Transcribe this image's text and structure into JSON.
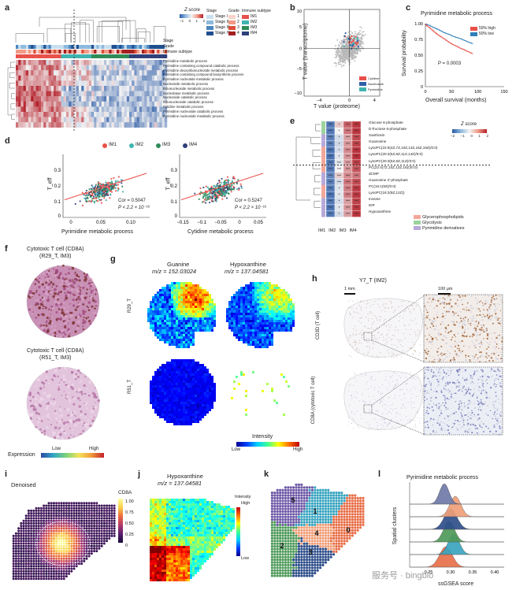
{
  "panel_labels": {
    "a": "a",
    "b": "b",
    "c": "c",
    "d": "d",
    "e": "e",
    "f": "f",
    "g": "g",
    "h": "h",
    "i": "i",
    "j": "j",
    "k": "k",
    "l": "l"
  },
  "panel_a": {
    "zscore_title": "Z score",
    "zscore_ticks": [
      "−1",
      "0",
      "1",
      "2"
    ],
    "annotation_labels": [
      "Stage",
      "Grade",
      "Immune subtype"
    ],
    "stage_title": "Stage",
    "stage_items": [
      {
        "label": "Stage I",
        "color": "#c9dff0"
      },
      {
        "label": "Stage II",
        "color": "#8db9dc"
      },
      {
        "label": "Stage III",
        "color": "#4a86c0"
      },
      {
        "label": "Stage IV",
        "color": "#1f4f8f"
      }
    ],
    "grade_title": "Grade",
    "grade_items": [
      {
        "label": "1",
        "color": "#fbd3cc"
      },
      {
        "label": "2",
        "color": "#f29a86"
      },
      {
        "label": "3",
        "color": "#dd4d3a"
      },
      {
        "label": "4",
        "color": "#a41f1f"
      }
    ],
    "immune_title": "Immune subtype",
    "immune_items": [
      {
        "label": "IM1",
        "color": "#e8504a"
      },
      {
        "label": "IM2",
        "color": "#3fb3b0"
      },
      {
        "label": "IM3",
        "color": "#2e8b57"
      },
      {
        "label": "IM4",
        "color": "#2f3f7a"
      }
    ],
    "rows": [
      "Pyrimidine metabolic process",
      "Pyrimidine containing compound catabolic process",
      "Pyrimidine deoxyribonucleotide metabolic process",
      "Pyrimidine containing compound biosynthetic process",
      "Pyrimidine nucleotide metabolic process",
      "Nucleoside metabolic process",
      "Ribonucleoside metabolic process",
      "Nucleobase metabolic process",
      "Nucleoside catabolic process",
      "Ribonucleoside catabolic process",
      "Cytidine metabolic process",
      "Pyrimidine nucleoside catabolic process",
      "Pyrimidine nucleoside metabolic process"
    ]
  },
  "panel_b": {
    "xlabel": "T value (proteome)",
    "ylabel": "T value (transcriptome)",
    "legend": [
      {
        "label": "Cytidine",
        "color": "#e8504a"
      },
      {
        "label": "Nucleoside",
        "color": "#2f5fa8"
      },
      {
        "label": "Pyrimidine",
        "color": "#3fb3b0"
      }
    ]
  },
  "panel_c": {
    "title": "Pyrimidine metabolic process",
    "legend": [
      {
        "label": "50% high",
        "color": "#e8504a"
      },
      {
        "label": "50% low",
        "color": "#2f7fb8"
      }
    ],
    "pvalue": "P = 0.0003",
    "xlabel": "Overall survival (months)",
    "ylabel": "Survival probability"
  },
  "panel_d": {
    "legend": [
      {
        "label": "IM1",
        "color": "#e8504a"
      },
      {
        "label": "IM2",
        "color": "#3fb3b0"
      },
      {
        "label": "IM3",
        "color": "#2e8b57"
      },
      {
        "label": "IM4",
        "color": "#2f3f7a"
      }
    ],
    "left": {
      "xlabel": "Pyrimidine metabolic process",
      "ylabel": "T_eff",
      "cor": "Cor = 0.5047",
      "p": "P < 2.2 × 10⁻¹⁶"
    },
    "right": {
      "xlabel": "Cytidine metabolic process",
      "ylabel": "T_eff",
      "cor": "Cor = 0.5247",
      "p": "P < 2.2 × 10⁻¹⁶"
    }
  },
  "panel_e": {
    "zscore_title": "Z score",
    "zscore_ticks": [
      "−2",
      "−1",
      "0",
      "1",
      "2"
    ],
    "columns": [
      "IM1",
      "IM2",
      "IM3",
      "IM4"
    ],
    "metabolites": [
      "Glucose 6-phosphate",
      "D-fructose 6-phosphate",
      "Xanthosin",
      "Guanosine",
      "LysoPC(22:6(4Z,7Z,10Z,13Z,16Z,19Z)/0:0)",
      "LysoPC(20:4(5Z,8Z,11Z,14Z)/0:0)",
      "LysoPC(20:3(5Z,8Z,11Z)/0:0)",
      "PC(22:4(7Z,10Z,13Z,16Z)/0:0)",
      "dCMP",
      "Guanosine 3'-phosphate",
      "PC(16:1(9Z)/0:0)",
      "LysoPC(16:2(9Z,12Z))",
      "Inosine",
      "IDP",
      "Hypoxanthine"
    ],
    "class_legend": [
      {
        "label": "Glycerophospholipids",
        "color": "#f3a79a"
      },
      {
        "label": "Glycolysis",
        "color": "#9bd39b"
      },
      {
        "label": "Pyrimidine derivatives",
        "color": "#b7a9d9"
      }
    ]
  },
  "panel_f": {
    "top_title": "Cytotoxic T cell (CD8A)",
    "top_sub": "(R29_T, IM3)",
    "bottom_title": "Cytotoxic T cell (CD8A)",
    "bottom_sub": "(R51_T, IM3)",
    "expression_label": "Expression",
    "low": "Low",
    "high": "High"
  },
  "panel_g": {
    "col1_title": "Guanine",
    "col1_mz": "m/z = 152.03024",
    "col2_title": "Hypoxanthine",
    "col2_mz": "m/z = 137.04581",
    "row1": "R29_T",
    "row2": "R51_T",
    "intensity": "Intensity",
    "low": "Low",
    "high": "High"
  },
  "panel_h": {
    "title": "Y7_T (IM2)",
    "scale1": "1 mm",
    "scale2": "100 μm",
    "row1": "CD3D (T cell)",
    "row2": "CD8A (cytotoxic T cell)"
  },
  "panel_i": {
    "title": "Denoised",
    "cbar_title": "CD8A",
    "cbar_ticks": [
      "1.00",
      "0.75",
      "0.50",
      "0.25",
      "0"
    ]
  },
  "panel_j": {
    "title": "Hypoxanthine",
    "mz": "m/z = 137.04581",
    "intensity": "Intensity",
    "high": "High",
    "low": "Low"
  },
  "panel_k": {
    "clusters": [
      "0",
      "1",
      "2",
      "3",
      "4",
      "5"
    ]
  },
  "panel_l": {
    "title": "Pyrimidine metabolic process",
    "xlabel": "ssGSEA score",
    "ylabel": "Spatial clusters",
    "ticks": [
      "0.25",
      "0.30",
      "0.35",
      "0.40"
    ]
  },
  "watermark": "服务号 · bingbio"
}
